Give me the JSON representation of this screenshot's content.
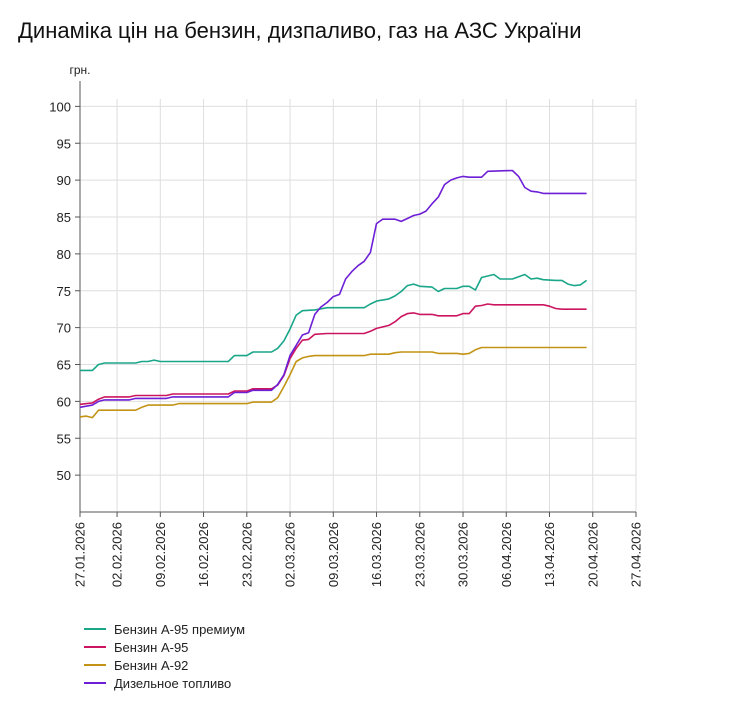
{
  "chart_data": {
    "type": "line",
    "title": "Динаміка цін на бензин, дизпаливо, газ на АЗС України",
    "ylabel": "грн.",
    "xlabel": "",
    "ylim": [
      45,
      101
    ],
    "yticks": [
      50,
      55,
      60,
      65,
      70,
      75,
      80,
      85,
      90,
      95,
      100
    ],
    "grid": true,
    "legend_position": "bottom-left",
    "xtick_labels": [
      "27.01.2026",
      "02.02.2026",
      "09.02.2026",
      "16.02.2026",
      "23.02.2026",
      "02.03.2026",
      "09.03.2026",
      "16.03.2026",
      "23.03.2026",
      "30.03.2026",
      "06.04.2026",
      "13.04.2026",
      "20.04.2026",
      "27.04.2026"
    ],
    "xtick_days": [
      0,
      6,
      13,
      20,
      27,
      34,
      41,
      48,
      55,
      62,
      69,
      76,
      83,
      90
    ],
    "series": [
      {
        "name": "Бензин А-95 премиум",
        "color": "#19a689",
        "points": [
          [
            0,
            64.2
          ],
          [
            2,
            64.2
          ],
          [
            3,
            65
          ],
          [
            4,
            65.2
          ],
          [
            9,
            65.2
          ],
          [
            10,
            65.4
          ],
          [
            11,
            65.4
          ],
          [
            12,
            65.6
          ],
          [
            13,
            65.4
          ],
          [
            24,
            65.4
          ],
          [
            25,
            66.2
          ],
          [
            27,
            66.2
          ],
          [
            28,
            66.7
          ],
          [
            31,
            66.7
          ],
          [
            32,
            67.2
          ],
          [
            33,
            68.2
          ],
          [
            34,
            69.8
          ],
          [
            35,
            71.7
          ],
          [
            36,
            72.3
          ],
          [
            38,
            72.4
          ],
          [
            40,
            72.7
          ],
          [
            46,
            72.7
          ],
          [
            47,
            73.2
          ],
          [
            48,
            73.6
          ],
          [
            50,
            73.9
          ],
          [
            51,
            74.3
          ],
          [
            52,
            74.9
          ],
          [
            53,
            75.7
          ],
          [
            54,
            75.9
          ],
          [
            55,
            75.6
          ],
          [
            57,
            75.5
          ],
          [
            58,
            74.9
          ],
          [
            59,
            75.3
          ],
          [
            61,
            75.3
          ],
          [
            62,
            75.6
          ],
          [
            63,
            75.6
          ],
          [
            64,
            75.1
          ],
          [
            65,
            76.8
          ],
          [
            66,
            77
          ],
          [
            67,
            77.2
          ],
          [
            68,
            76.6
          ],
          [
            70,
            76.6
          ],
          [
            71,
            76.9
          ],
          [
            72,
            77.2
          ],
          [
            73,
            76.6
          ],
          [
            74,
            76.7
          ],
          [
            75,
            76.5
          ],
          [
            77,
            76.4
          ],
          [
            78,
            76.4
          ],
          [
            79,
            75.9
          ],
          [
            80,
            75.7
          ],
          [
            81,
            75.8
          ],
          [
            82,
            76.4
          ]
        ]
      },
      {
        "name": "Бензин А-95",
        "color": "#cc1560",
        "points": [
          [
            0,
            59.6
          ],
          [
            2,
            59.8
          ],
          [
            3,
            60.3
          ],
          [
            4,
            60.6
          ],
          [
            8,
            60.6
          ],
          [
            9,
            60.8
          ],
          [
            14,
            60.8
          ],
          [
            15,
            61
          ],
          [
            24,
            61
          ],
          [
            25,
            61.4
          ],
          [
            27,
            61.4
          ],
          [
            28,
            61.7
          ],
          [
            31,
            61.7
          ],
          [
            32,
            62.2
          ],
          [
            33,
            63.5
          ],
          [
            34,
            65.8
          ],
          [
            35,
            67.2
          ],
          [
            36,
            68.3
          ],
          [
            37,
            68.4
          ],
          [
            38,
            69.1
          ],
          [
            40,
            69.2
          ],
          [
            46,
            69.2
          ],
          [
            47,
            69.5
          ],
          [
            48,
            69.9
          ],
          [
            50,
            70.3
          ],
          [
            51,
            70.8
          ],
          [
            52,
            71.5
          ],
          [
            53,
            71.9
          ],
          [
            54,
            72
          ],
          [
            55,
            71.8
          ],
          [
            57,
            71.8
          ],
          [
            58,
            71.6
          ],
          [
            61,
            71.6
          ],
          [
            62,
            71.9
          ],
          [
            63,
            71.9
          ],
          [
            64,
            72.9
          ],
          [
            65,
            73
          ],
          [
            66,
            73.2
          ],
          [
            67,
            73.1
          ],
          [
            75,
            73.1
          ],
          [
            76,
            72.9
          ],
          [
            77,
            72.6
          ],
          [
            78,
            72.5
          ],
          [
            82,
            72.5
          ]
        ]
      },
      {
        "name": "Бензин А-92",
        "color": "#c29314",
        "points": [
          [
            0,
            57.9
          ],
          [
            1,
            58
          ],
          [
            2,
            57.8
          ],
          [
            3,
            58.8
          ],
          [
            9,
            58.8
          ],
          [
            10,
            59.2
          ],
          [
            11,
            59.5
          ],
          [
            15,
            59.5
          ],
          [
            16,
            59.7
          ],
          [
            27,
            59.7
          ],
          [
            28,
            59.9
          ],
          [
            31,
            59.9
          ],
          [
            32,
            60.5
          ],
          [
            33,
            62
          ],
          [
            34,
            63.6
          ],
          [
            35,
            65.4
          ],
          [
            36,
            65.9
          ],
          [
            37,
            66.1
          ],
          [
            38,
            66.2
          ],
          [
            46,
            66.2
          ],
          [
            47,
            66.4
          ],
          [
            50,
            66.4
          ],
          [
            51,
            66.6
          ],
          [
            52,
            66.7
          ],
          [
            57,
            66.7
          ],
          [
            58,
            66.5
          ],
          [
            61,
            66.5
          ],
          [
            62,
            66.4
          ],
          [
            63,
            66.5
          ],
          [
            64,
            67
          ],
          [
            65,
            67.3
          ],
          [
            82,
            67.3
          ]
        ]
      },
      {
        "name": "Дизельное топливо",
        "color": "#6d1fd6",
        "points": [
          [
            0,
            59.2
          ],
          [
            2,
            59.5
          ],
          [
            3,
            60
          ],
          [
            4,
            60.2
          ],
          [
            8,
            60.2
          ],
          [
            9,
            60.4
          ],
          [
            14,
            60.4
          ],
          [
            15,
            60.6
          ],
          [
            24,
            60.6
          ],
          [
            25,
            61.2
          ],
          [
            27,
            61.2
          ],
          [
            28,
            61.5
          ],
          [
            31,
            61.5
          ],
          [
            32,
            62.3
          ],
          [
            33,
            63.6
          ],
          [
            34,
            66.2
          ],
          [
            35,
            67.6
          ],
          [
            36,
            69
          ],
          [
            37,
            69.3
          ],
          [
            38,
            71.8
          ],
          [
            39,
            72.8
          ],
          [
            40,
            73.4
          ],
          [
            41,
            74.2
          ],
          [
            42,
            74.5
          ],
          [
            43,
            76.6
          ],
          [
            44,
            77.6
          ],
          [
            45,
            78.4
          ],
          [
            46,
            79
          ],
          [
            47,
            80.2
          ],
          [
            48,
            84.1
          ],
          [
            49,
            84.7
          ],
          [
            51,
            84.7
          ],
          [
            52,
            84.4
          ],
          [
            53,
            84.8
          ],
          [
            54,
            85.2
          ],
          [
            55,
            85.4
          ],
          [
            56,
            85.8
          ],
          [
            57,
            86.8
          ],
          [
            58,
            87.7
          ],
          [
            59,
            89.4
          ],
          [
            60,
            90
          ],
          [
            61,
            90.3
          ],
          [
            62,
            90.5
          ],
          [
            63,
            90.4
          ],
          [
            65,
            90.4
          ],
          [
            66,
            91.2
          ],
          [
            70,
            91.3
          ],
          [
            71,
            90.5
          ],
          [
            72,
            89
          ],
          [
            73,
            88.5
          ],
          [
            74,
            88.4
          ],
          [
            75,
            88.2
          ],
          [
            82,
            88.2
          ]
        ]
      }
    ]
  }
}
